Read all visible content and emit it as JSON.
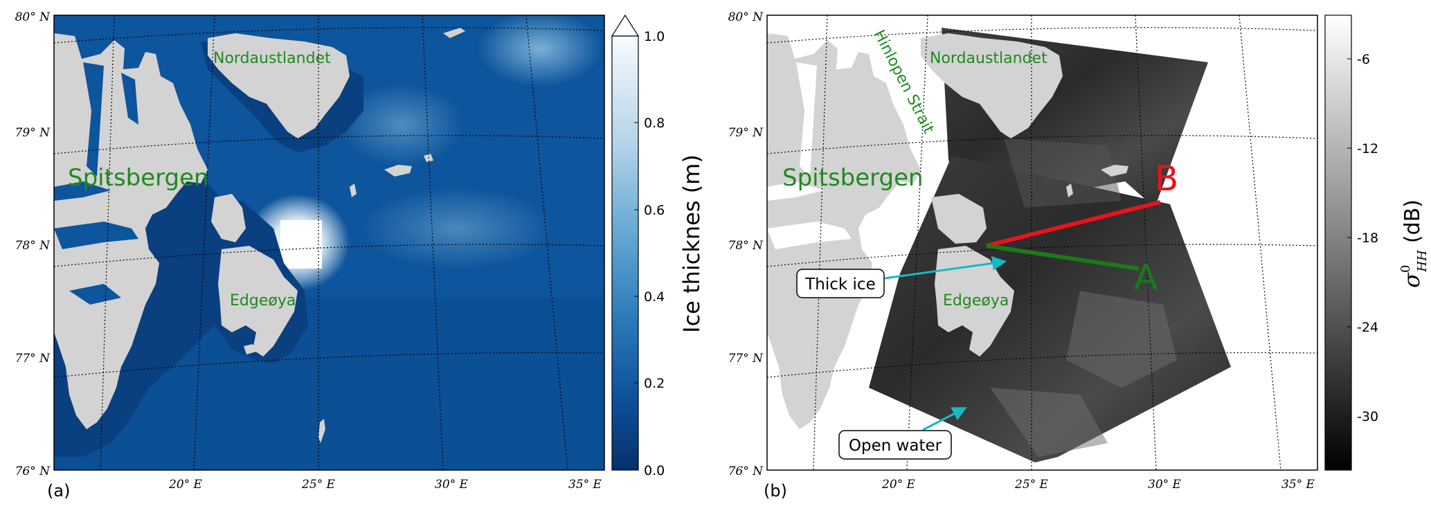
{
  "panel_a": {
    "label": "(a)",
    "places": {
      "spitsbergen": "Spitsbergen",
      "nordaustlandet": "Nordaustlandet",
      "edgeoya": "Edgeøya"
    },
    "lat_labels": [
      "80° N",
      "79° N",
      "78° N",
      "77° N",
      "76° N"
    ],
    "lon_labels": [
      "20° E",
      "25° E",
      "30° E",
      "35° E"
    ],
    "colorbar": {
      "title": "Ice thicknes (m)",
      "ticks": [
        "1.0",
        "0.8",
        "0.6",
        "0.4",
        "0.2",
        "0.0"
      ],
      "range": [
        0.0,
        1.0
      ],
      "extend": "max",
      "colormap": "Blues"
    }
  },
  "panel_b": {
    "label": "(b)",
    "places": {
      "spitsbergen": "Spitsbergen",
      "nordaustlandet": "Nordaustlandet",
      "edgeoya": "Edgeøya",
      "hinlopen": "Hinlopen Strait"
    },
    "lat_labels": [
      "80° N",
      "79° N",
      "78° N",
      "77° N",
      "76° N"
    ],
    "lon_labels": [
      "20° E",
      "25° E",
      "30° E",
      "35° E"
    ],
    "point_a": "A",
    "point_b": "B",
    "callout_thick": "Thick ice",
    "callout_open": "Open water",
    "colorbar": {
      "title_symbol": "σ",
      "title_super": "0",
      "title_sub": "HH",
      "title_unit": "(dB)",
      "ticks": [
        "-6",
        "-12",
        "-18",
        "-24",
        "-30"
      ],
      "colormap": "gray"
    }
  },
  "colors": {
    "land": "#d3d3d3",
    "ocean_dark": "#0b4e96",
    "ice_thick": "#ffffff",
    "label_green": "#1f8a1f",
    "line_red": "#e8141b",
    "line_green": "#1a7a1a",
    "arrow_cyan": "#17b8c6"
  }
}
